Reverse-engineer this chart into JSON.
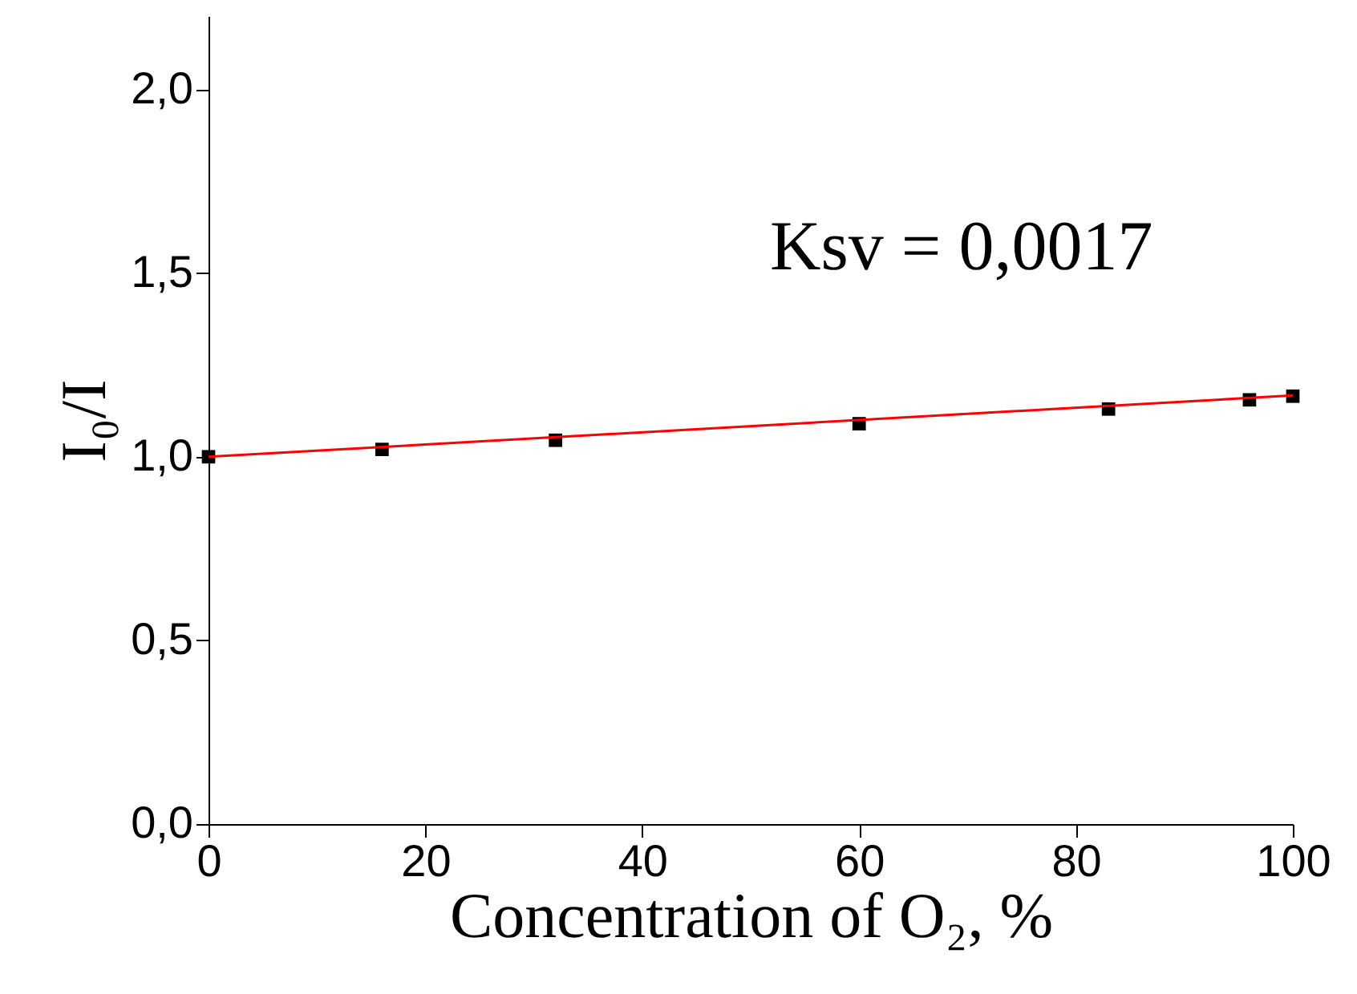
{
  "chart_data": {
    "type": "scatter",
    "xlabel": "Concentration of O₂, %",
    "ylabel": "I₀/I",
    "x": [
      0,
      16,
      32,
      60,
      83,
      96,
      100
    ],
    "series": [
      {
        "color": "#000000",
        "marker": "square",
        "values": [
          1.0,
          1.02,
          1.045,
          1.09,
          1.13,
          1.155,
          1.165
        ]
      },
      {
        "type": "line",
        "color": "#ff0000",
        "x": [
          0,
          100
        ],
        "values": [
          1.0,
          1.167
        ],
        "line_style": "solid",
        "marker": "none"
      }
    ],
    "xlim": [
      0,
      100
    ],
    "xticks": [
      0,
      20,
      40,
      60,
      80,
      100
    ],
    "ylim": [
      0,
      2.2
    ],
    "yticks": [
      {
        "value": 0,
        "label": "0,0"
      },
      {
        "value": 0.5,
        "label": "0,5"
      },
      {
        "value": 1.0,
        "label": "1,0"
      },
      {
        "value": 1.5,
        "label": "1,5"
      },
      {
        "value": 2.0,
        "label": "2,0"
      }
    ],
    "annotations": [
      "Ksv = 0,0017"
    ],
    "grid": false
  }
}
